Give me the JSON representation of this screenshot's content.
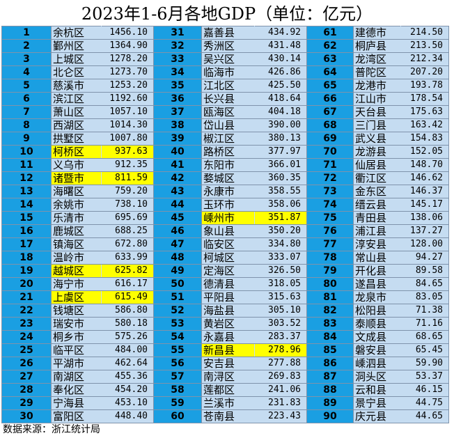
{
  "title": "2023年1-6月各地GDP（单位：亿元）",
  "source": "数据来源：浙江统计局",
  "colors": {
    "rank_bg": "#1a9fe2",
    "row_bg": "#c5dcf1",
    "highlight": "#ffff00"
  },
  "chart_data": {
    "type": "table",
    "title": "2023年1-6月各地GDP（单位：亿元）",
    "unit": "亿元",
    "highlighted_ranks": [
      10,
      12,
      19,
      21,
      45,
      55
    ],
    "rows": [
      {
        "rank": 1,
        "name": "余杭区",
        "value": "1456.10"
      },
      {
        "rank": 2,
        "name": "鄞州区",
        "value": "1364.90"
      },
      {
        "rank": 3,
        "name": "上城区",
        "value": "1278.20"
      },
      {
        "rank": 4,
        "name": "北仑区",
        "value": "1273.70"
      },
      {
        "rank": 5,
        "name": "慈溪市",
        "value": "1253.20"
      },
      {
        "rank": 6,
        "name": "滨江区",
        "value": "1192.60"
      },
      {
        "rank": 7,
        "name": "萧山区",
        "value": "1057.10"
      },
      {
        "rank": 8,
        "name": "西湖区",
        "value": "1014.30"
      },
      {
        "rank": 9,
        "name": "拱墅区",
        "value": "1007.80"
      },
      {
        "rank": 10,
        "name": "柯桥区",
        "value": "937.63"
      },
      {
        "rank": 11,
        "name": "义乌市",
        "value": "912.35"
      },
      {
        "rank": 12,
        "name": "诸暨市",
        "value": "811.59"
      },
      {
        "rank": 13,
        "name": "海曙区",
        "value": "759.20"
      },
      {
        "rank": 14,
        "name": "余姚市",
        "value": "738.10"
      },
      {
        "rank": 15,
        "name": "乐清市",
        "value": "695.69"
      },
      {
        "rank": 16,
        "name": "鹿城区",
        "value": "688.25"
      },
      {
        "rank": 17,
        "name": "镇海区",
        "value": "672.80"
      },
      {
        "rank": 18,
        "name": "温岭市",
        "value": "633.99"
      },
      {
        "rank": 19,
        "name": "越城区",
        "value": "625.82"
      },
      {
        "rank": 20,
        "name": "海宁市",
        "value": "616.17"
      },
      {
        "rank": 21,
        "name": "上虞区",
        "value": "615.49"
      },
      {
        "rank": 22,
        "name": "钱塘区",
        "value": "586.80"
      },
      {
        "rank": 23,
        "name": "瑞安市",
        "value": "580.18"
      },
      {
        "rank": 24,
        "name": "桐乡市",
        "value": "575.26"
      },
      {
        "rank": 25,
        "name": "临平区",
        "value": "484.00"
      },
      {
        "rank": 26,
        "name": "平湖市",
        "value": "462.64"
      },
      {
        "rank": 27,
        "name": "南湖区",
        "value": "455.36"
      },
      {
        "rank": 28,
        "name": "奉化区",
        "value": "454.20"
      },
      {
        "rank": 29,
        "name": "宁海县",
        "value": "453.10"
      },
      {
        "rank": 30,
        "name": "富阳区",
        "value": "448.40"
      },
      {
        "rank": 31,
        "name": "嘉善县",
        "value": "434.92"
      },
      {
        "rank": 32,
        "name": "秀洲区",
        "value": "431.48"
      },
      {
        "rank": 33,
        "name": "吴兴区",
        "value": "430.14"
      },
      {
        "rank": 34,
        "name": "临海市",
        "value": "426.86"
      },
      {
        "rank": 35,
        "name": "江北区",
        "value": "425.50"
      },
      {
        "rank": 36,
        "name": "长兴县",
        "value": "418.64"
      },
      {
        "rank": 37,
        "name": "瓯海区",
        "value": "404.18"
      },
      {
        "rank": 38,
        "name": "岱山县",
        "value": "390.00"
      },
      {
        "rank": 39,
        "name": "椒江区",
        "value": "380.13"
      },
      {
        "rank": 40,
        "name": "路桥区",
        "value": "377.97"
      },
      {
        "rank": 41,
        "name": "东阳市",
        "value": "366.01"
      },
      {
        "rank": 42,
        "name": "婺城区",
        "value": "360.35"
      },
      {
        "rank": 43,
        "name": "永康市",
        "value": "358.55"
      },
      {
        "rank": 44,
        "name": "玉环市",
        "value": "358.06"
      },
      {
        "rank": 45,
        "name": "嵊州市",
        "value": "351.87"
      },
      {
        "rank": 46,
        "name": "象山县",
        "value": "350.20"
      },
      {
        "rank": 47,
        "name": "临安区",
        "value": "334.80"
      },
      {
        "rank": 48,
        "name": "柯城区",
        "value": "333.07"
      },
      {
        "rank": 49,
        "name": "定海区",
        "value": "326.50"
      },
      {
        "rank": 50,
        "name": "德清县",
        "value": "318.05"
      },
      {
        "rank": 51,
        "name": "平阳县",
        "value": "315.63"
      },
      {
        "rank": 52,
        "name": "海盐县",
        "value": "305.10"
      },
      {
        "rank": 53,
        "name": "黄岩区",
        "value": "303.52"
      },
      {
        "rank": 54,
        "name": "永嘉县",
        "value": "283.37"
      },
      {
        "rank": 55,
        "name": "新昌县",
        "value": "278.96"
      },
      {
        "rank": 56,
        "name": "安吉县",
        "value": "277.88"
      },
      {
        "rank": 57,
        "name": "南浔区",
        "value": "269.83"
      },
      {
        "rank": 58,
        "name": "莲都区",
        "value": "241.06"
      },
      {
        "rank": 59,
        "name": "兰溪市",
        "value": "231.83"
      },
      {
        "rank": 60,
        "name": "苍南县",
        "value": "223.43"
      },
      {
        "rank": 61,
        "name": "建德市",
        "value": "214.50"
      },
      {
        "rank": 62,
        "name": "桐庐县",
        "value": "213.50"
      },
      {
        "rank": 63,
        "name": "龙湾区",
        "value": "212.34"
      },
      {
        "rank": 64,
        "name": "普陀区",
        "value": "207.20"
      },
      {
        "rank": 65,
        "name": "龙港市",
        "value": "193.78"
      },
      {
        "rank": 66,
        "name": "江山市",
        "value": "178.54"
      },
      {
        "rank": 67,
        "name": "天台县",
        "value": "175.63"
      },
      {
        "rank": 68,
        "name": "三门县",
        "value": "163.42"
      },
      {
        "rank": 69,
        "name": "武义县",
        "value": "154.83"
      },
      {
        "rank": 70,
        "name": "龙游县",
        "value": "152.05"
      },
      {
        "rank": 71,
        "name": "仙居县",
        "value": "148.70"
      },
      {
        "rank": 72,
        "name": "衢江区",
        "value": "146.62"
      },
      {
        "rank": 73,
        "name": "金东区",
        "value": "146.37"
      },
      {
        "rank": 74,
        "name": "缙云县",
        "value": "145.17"
      },
      {
        "rank": 75,
        "name": "青田县",
        "value": "138.06"
      },
      {
        "rank": 76,
        "name": "浦江县",
        "value": "137.27"
      },
      {
        "rank": 77,
        "name": "淳安县",
        "value": "128.00"
      },
      {
        "rank": 78,
        "name": "常山县",
        "value": "94.27"
      },
      {
        "rank": 79,
        "name": "开化县",
        "value": "89.58"
      },
      {
        "rank": 80,
        "name": "遂昌县",
        "value": "84.65"
      },
      {
        "rank": 81,
        "name": "龙泉市",
        "value": "83.05"
      },
      {
        "rank": 82,
        "name": "松阳县",
        "value": "71.38"
      },
      {
        "rank": 83,
        "name": "泰顺县",
        "value": "71.16"
      },
      {
        "rank": 84,
        "name": "文成县",
        "value": "68.65"
      },
      {
        "rank": 85,
        "name": "磐安县",
        "value": "65.45"
      },
      {
        "rank": 86,
        "name": "嵊泗县",
        "value": "59.90"
      },
      {
        "rank": 87,
        "name": "洞头区",
        "value": "53.37"
      },
      {
        "rank": 88,
        "name": "云和县",
        "value": "46.15"
      },
      {
        "rank": 89,
        "name": "景宁县",
        "value": "44.75"
      },
      {
        "rank": 90,
        "name": "庆元县",
        "value": "44.65"
      }
    ]
  }
}
